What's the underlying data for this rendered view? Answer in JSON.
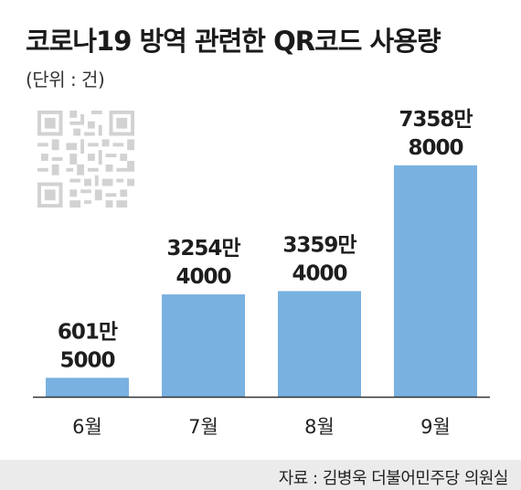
{
  "header": {
    "title": "코로나19 방역 관련한 QR코드 사용량",
    "unit": "(단위 : 건)"
  },
  "footer": {
    "source": "자료 : 김병욱 더불어민주당 의원실"
  },
  "colors": {
    "bar": "#79b1e0",
    "axis": "#333333",
    "qr": "#d2d2d2",
    "source_bg": "#ebebeb"
  },
  "decoration": {
    "icon": "qr-code-icon"
  },
  "chart_data": {
    "type": "bar",
    "title": "코로나19 방역 관련한 QR코드 사용량",
    "xlabel": "",
    "ylabel": "",
    "categories": [
      "6월",
      "7월",
      "8월",
      "9월"
    ],
    "values": [
      6015000,
      32544000,
      33594000,
      73588000
    ],
    "value_labels": [
      [
        "601만",
        "5000"
      ],
      [
        "3254만",
        "4000"
      ],
      [
        "3359만",
        "4000"
      ],
      [
        "7358만",
        "8000"
      ]
    ],
    "ylim": [
      0,
      100000000
    ],
    "grid": false,
    "legend": "none"
  }
}
